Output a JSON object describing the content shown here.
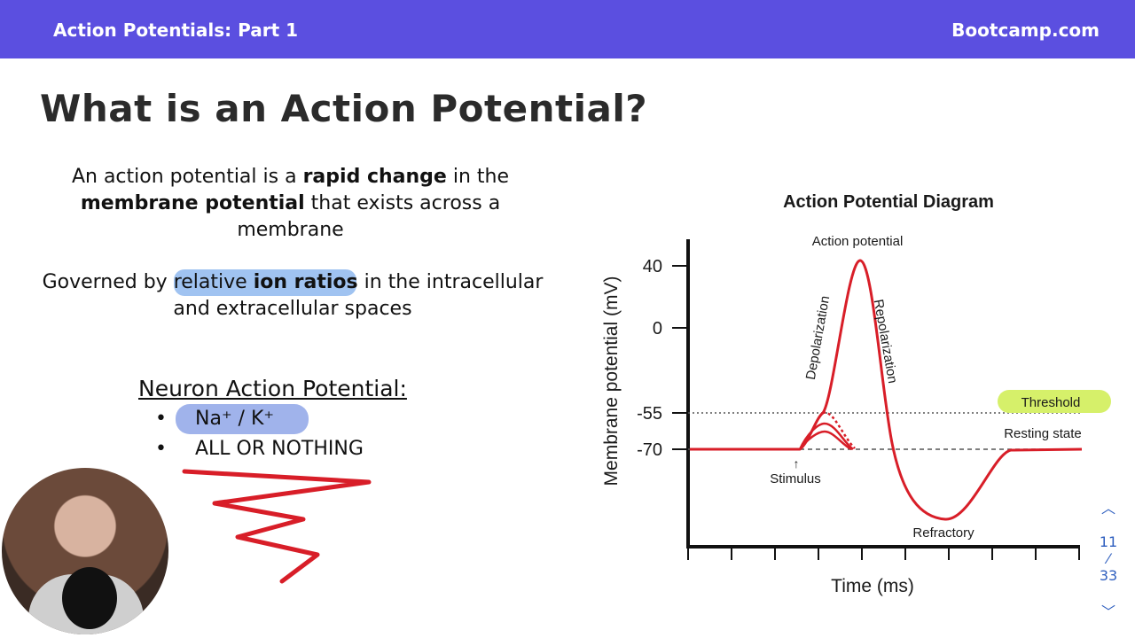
{
  "header": {
    "title": "Action Potentials: Part 1",
    "brand": "Bootcamp.com",
    "bg_color": "#5b4fe0"
  },
  "slide": {
    "title": "What is an Action Potential?",
    "para1": {
      "a": "An action potential is a ",
      "b": "rapid change",
      "c": " in the ",
      "d": "membrane potential",
      "e": " that exists across a membrane"
    },
    "para2": {
      "a": "Governed by relative ",
      "b": "ion ratios",
      "c": " in the intracellular and extracellular spaces"
    },
    "subheading": "Neuron Action Potential:",
    "bullets": [
      "Na⁺ / K⁺",
      "ALL OR NOTHING"
    ]
  },
  "diagram": {
    "title": "Action Potential Diagram",
    "ylabel": "Membrane potential (mV)",
    "xlabel": "Time (ms)",
    "yticks": [
      "40",
      "0",
      "-55",
      "-70"
    ],
    "labels": {
      "peak": "Action potential",
      "depol": "Depolarization",
      "repol": "Repolarization",
      "threshold": "Threshold",
      "resting": "Resting state",
      "stimulus": "Stimulus",
      "refractory": "Refractory"
    },
    "colors": {
      "curve": "#d81e28",
      "threshold_highlight": "#d6f06a"
    }
  },
  "nav": {
    "page": "11",
    "total": "33"
  }
}
